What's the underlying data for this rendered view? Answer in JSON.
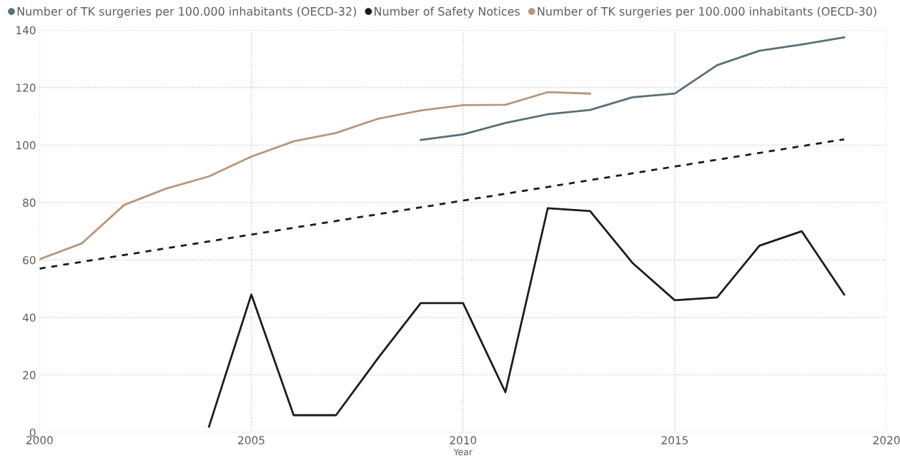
{
  "chart_data": {
    "type": "line",
    "xlabel": "Year",
    "xlim": [
      2000,
      2020
    ],
    "xticks": [
      2000,
      2005,
      2010,
      2015,
      2020
    ],
    "ylim": [
      0,
      140
    ],
    "yticks": [
      0,
      20,
      40,
      60,
      80,
      100,
      120,
      140
    ],
    "grid": true,
    "legend": "top left",
    "series": [
      {
        "name": "Number of TK surgeries per 100.000 inhabitants (OECD-32)",
        "color": "#5a6f78",
        "x": [
          2009,
          2010,
          2011,
          2012,
          2013,
          2014,
          2015,
          2016,
          2017,
          2018,
          2019
        ],
        "values": [
          101.8,
          103.7,
          107.7,
          110.7,
          112.2,
          116.6,
          117.9,
          127.8,
          132.8,
          135,
          137.5
        ]
      },
      {
        "name": "Number of Safety Notices",
        "color": "#201a1a",
        "x": [
          2004,
          2005,
          2006,
          2007,
          2008,
          2009,
          2010,
          2011,
          2012,
          2013,
          2014,
          2015,
          2016,
          2017,
          2018,
          2019
        ],
        "values": [
          2,
          48,
          6,
          6,
          26,
          45,
          45,
          14,
          78,
          77,
          59,
          46,
          47,
          65,
          70,
          48
        ]
      },
      {
        "name": "Number of TK surgeries per 100.000 inhabitants (OECD-30)",
        "color": "#b8977a",
        "x": [
          2000,
          2001,
          2002,
          2003,
          2004,
          2005,
          2006,
          2007,
          2008,
          2009,
          2010,
          2011,
          2012,
          2013
        ],
        "values": [
          60.3,
          65.8,
          79.2,
          84.9,
          89.1,
          96,
          101.3,
          104.2,
          109.2,
          112,
          113.9,
          114,
          118.4,
          117.9
        ]
      },
      {
        "type": "line",
        "line_style": "dashed",
        "color": "#201a1a",
        "x": [
          2000,
          2019
        ],
        "values": [
          57,
          102
        ]
      }
    ]
  }
}
